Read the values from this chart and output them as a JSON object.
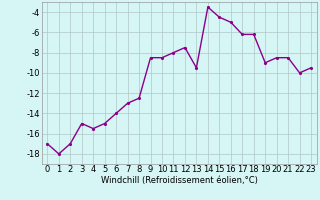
{
  "x": [
    0,
    1,
    2,
    3,
    4,
    5,
    6,
    7,
    8,
    9,
    10,
    11,
    12,
    13,
    14,
    15,
    16,
    17,
    18,
    19,
    20,
    21,
    22,
    23
  ],
  "y": [
    -17,
    -18,
    -17,
    -15,
    -15.5,
    -15,
    -14,
    -13,
    -12.5,
    -8.5,
    -8.5,
    -8,
    -7.5,
    -9.5,
    -3.5,
    -4.5,
    -5,
    -6.2,
    -6.2,
    -9,
    -8.5,
    -8.5,
    -10,
    -9.5
  ],
  "line_color": "#8B008B",
  "marker_color": "#8B008B",
  "bg_color": "#d6f5f5",
  "grid_color": "#b0c8c8",
  "xlabel": "Windchill (Refroidissement éolien,°C)",
  "ylim": [
    -19,
    -3
  ],
  "yticks": [
    -18,
    -16,
    -14,
    -12,
    -10,
    -8,
    -6,
    -4
  ],
  "ytick_labels": [
    "-18",
    "-16",
    "-14",
    "-12",
    "-10",
    "-8",
    "-6",
    "-4"
  ],
  "xlim": [
    -0.5,
    23.5
  ],
  "xtick_labels": [
    "0",
    "1",
    "2",
    "3",
    "4",
    "5",
    "6",
    "7",
    "8",
    "9",
    "10",
    "11",
    "12",
    "13",
    "14",
    "15",
    "16",
    "17",
    "18",
    "19",
    "20",
    "21",
    "22",
    "23"
  ],
  "xlabel_fontsize": 6,
  "tick_fontsize": 6,
  "marker_size": 2.5,
  "line_width": 1.0
}
